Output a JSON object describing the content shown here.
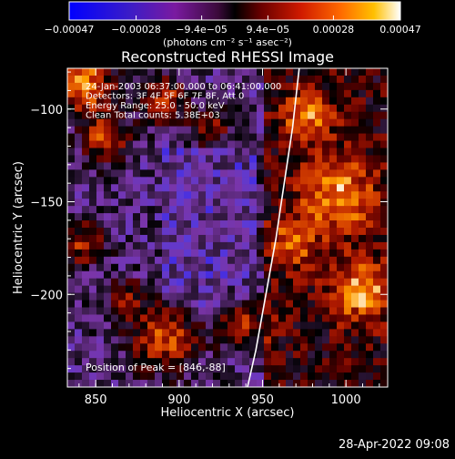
{
  "chart_data": {
    "type": "heatmap",
    "title": "Reconstructed RHESSI Image",
    "xlabel": "Heliocentric X (arcsec)",
    "ylabel": "Heliocentric Y (arcsec)",
    "xlim": [
      833,
      1025
    ],
    "ylim": [
      -250,
      -78
    ],
    "x_ticks": [
      850,
      900,
      950,
      1000
    ],
    "x_tick_labels": [
      "850",
      "900",
      "950",
      "1000"
    ],
    "y_ticks": [
      -100,
      -150,
      -200
    ],
    "y_tick_labels": [
      "−100",
      "−150",
      "−200"
    ],
    "colorbar": {
      "min": -0.00047,
      "max": 0.00047,
      "ticks": [
        -0.00047,
        -0.00028,
        -9.4e-05,
        9.4e-05,
        0.00028,
        0.00047
      ],
      "tick_labels": [
        "−0.00047",
        "−0.00028",
        "−9.4e−05",
        "9.4e−05",
        "0.00028",
        "0.00047"
      ],
      "unit_label": "(photons cm⁻² s⁻¹ asec⁻²)"
    },
    "info_lines": [
      "24-Jan-2003 06:37:00.000 to 06:41:00.000",
      "Detectors: 3F 4F 5F 6F 7F 8F, Att 0",
      "Energy Range: 25.0 - 50.0 keV",
      "Clean     Total counts: 5.38E+03"
    ],
    "peak_label": "Position of Peak = [846,-88]",
    "peak_position": [
      846,
      -88
    ],
    "limb_curve": [
      [
        941,
        -250
      ],
      [
        946,
        -230
      ],
      [
        952,
        -200
      ],
      [
        958,
        -170
      ],
      [
        963,
        -140
      ],
      [
        968,
        -110
      ],
      [
        972,
        -78
      ]
    ],
    "colormap": [
      "#0000ff",
      "#5a3ad8",
      "#7a35a8",
      "#3a1c4a",
      "#000000",
      "#5a0000",
      "#b01a00",
      "#e05000",
      "#ffa000",
      "#ffffff"
    ]
  },
  "footer": {
    "date": "28-Apr-2022 09:08"
  }
}
